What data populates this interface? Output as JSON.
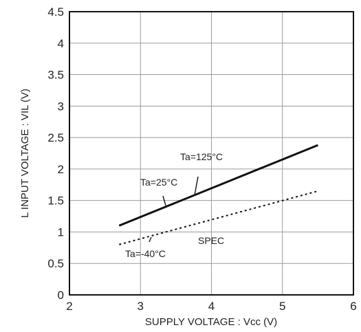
{
  "chart_data": {
    "type": "line",
    "xlabel": "SUPPLY VOLTAGE : Vcc (V)",
    "ylabel": "L INPUT VOLTAGE : VIL (V)",
    "xlim": [
      2,
      6
    ],
    "ylim": [
      0,
      4.5
    ],
    "x_ticks": [
      "2",
      "3",
      "4",
      "5",
      "6"
    ],
    "y_ticks": [
      "0",
      "0.5",
      "1",
      "1.5",
      "2",
      "2.5",
      "3",
      "3.5",
      "4",
      "4.5"
    ],
    "grid": true,
    "series": [
      {
        "x": [
          2.7,
          5.5
        ],
        "y": [
          1.1,
          2.38
        ],
        "style": "solid",
        "color": "#111111"
      },
      {
        "name": "SPEC",
        "x": [
          2.7,
          5.5
        ],
        "y": [
          0.8,
          1.65
        ],
        "style": "dotted",
        "color": "#111111"
      }
    ],
    "annotations": [
      {
        "text": "Ta=125°C",
        "x": 3.75,
        "y": 1.6
      },
      {
        "text": "Ta=25°C",
        "x": 3.3,
        "y": 1.35
      },
      {
        "text": "Ta=-40°C",
        "x": 3.15,
        "y": 1.03
      }
    ],
    "spec_label": "SPEC"
  }
}
